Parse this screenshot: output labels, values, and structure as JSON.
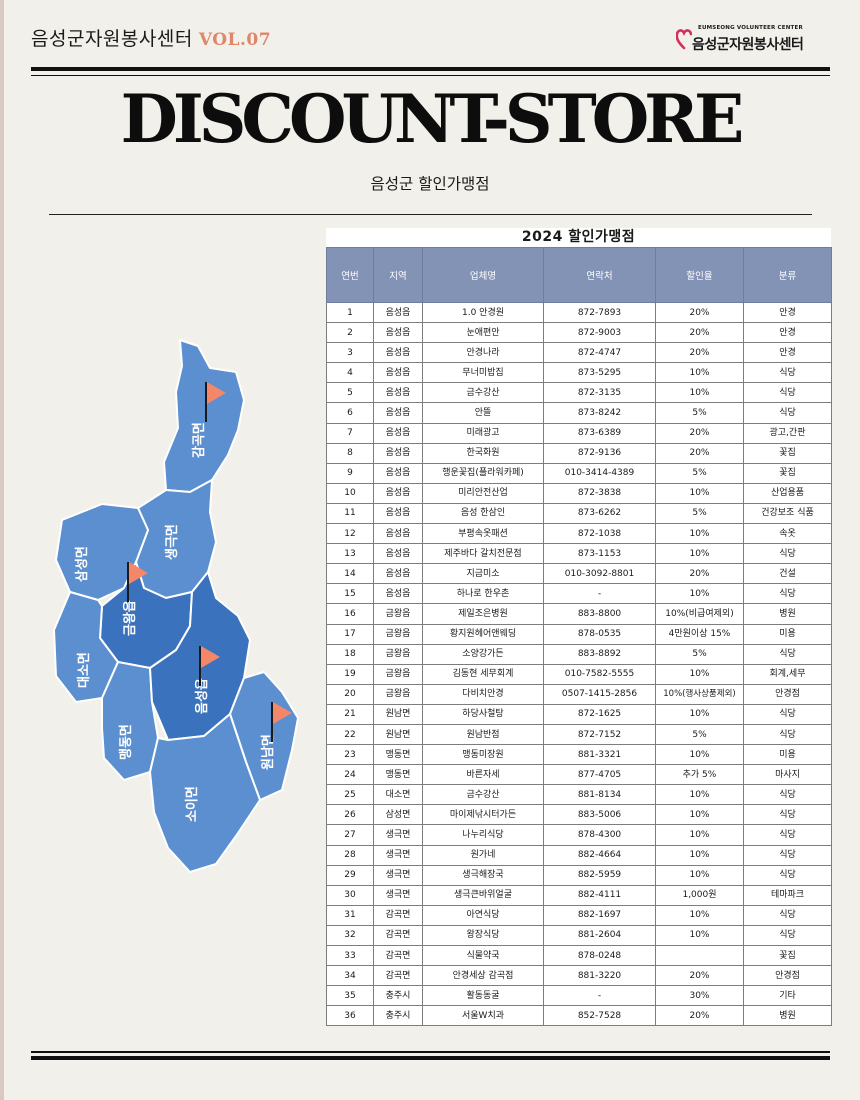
{
  "header": {
    "org_name": "음성군자원봉사센터",
    "vol": "VOL.07",
    "logo_sub": "EUMSEONG VOLUNTEER CENTER",
    "logo_name": "음성군자원봉사센터"
  },
  "title": "DISCOUNT-STORE",
  "subtitle": "음성군 할인가맹점",
  "colors": {
    "map_fill": "#5b8fd0",
    "map_dark": "#3a72bd",
    "flag": "#f4866a",
    "header_bg": "#8393b6",
    "vol": "#e0866a"
  },
  "map": {
    "regions": [
      "감곡면",
      "생극면",
      "삼성면",
      "금왕읍",
      "대소면",
      "맹동면",
      "음성읍",
      "원남면",
      "소이면"
    ]
  },
  "table": {
    "title": "2024 할인가맹점",
    "columns": [
      "연번",
      "지역",
      "업체명",
      "연락처",
      "할인율",
      "분류"
    ],
    "rows": [
      [
        "1",
        "음성읍",
        "1.0 안경원",
        "872-7893",
        "20%",
        "안경"
      ],
      [
        "2",
        "음성읍",
        "눈애편안",
        "872-9003",
        "20%",
        "안경"
      ],
      [
        "3",
        "음성읍",
        "안경나라",
        "872-4747",
        "20%",
        "안경"
      ],
      [
        "4",
        "음성읍",
        "무너미밥집",
        "873-5295",
        "10%",
        "식당"
      ],
      [
        "5",
        "음성읍",
        "금수강산",
        "872-3135",
        "10%",
        "식당"
      ],
      [
        "6",
        "음성읍",
        "안뜰",
        "873-8242",
        "5%",
        "식당"
      ],
      [
        "7",
        "음성읍",
        "미래광고",
        "873-6389",
        "20%",
        "광고,간판"
      ],
      [
        "8",
        "음성읍",
        "한국화원",
        "872-9136",
        "20%",
        "꽃집"
      ],
      [
        "9",
        "음성읍",
        "행운꽃집(플라워카페)",
        "010-3414-4389",
        "5%",
        "꽃집"
      ],
      [
        "10",
        "음성읍",
        "미리안전산업",
        "872-3838",
        "10%",
        "산업용품"
      ],
      [
        "11",
        "음성읍",
        "음성 한삼인",
        "873-6262",
        "5%",
        "건강보조 식품"
      ],
      [
        "12",
        "음성읍",
        "부평속옷패션",
        "872-1038",
        "10%",
        "속옷"
      ],
      [
        "13",
        "음성읍",
        "제주바다 갈치전문점",
        "873-1153",
        "10%",
        "식당"
      ],
      [
        "14",
        "음성읍",
        "지금미소",
        "010-3092-8801",
        "20%",
        "건설"
      ],
      [
        "15",
        "음성읍",
        "하나로 한우촌",
        "-",
        "10%",
        "식당"
      ],
      [
        "16",
        "금왕읍",
        "제일조은병원",
        "883-8800",
        "10%(비급여제외)",
        "병원"
      ],
      [
        "17",
        "금왕읍",
        "황지원헤어앤웨딩",
        "878-0535",
        "4만원이상 15%",
        "미용"
      ],
      [
        "18",
        "금왕읍",
        "소양강가든",
        "883-8892",
        "5%",
        "식당"
      ],
      [
        "19",
        "금왕읍",
        "김동현 세무회계",
        "010-7582-5555",
        "10%",
        "회계,세무"
      ],
      [
        "20",
        "금왕읍",
        "다비치안경",
        "0507-1415-2856",
        "10%(행사상품제외)",
        "안경점"
      ],
      [
        "21",
        "원남면",
        "하당사철탕",
        "872-1625",
        "10%",
        "식당"
      ],
      [
        "22",
        "원남면",
        "원남반점",
        "872-7152",
        "5%",
        "식당"
      ],
      [
        "23",
        "맹동면",
        "맹동미장원",
        "881-3321",
        "10%",
        "미용"
      ],
      [
        "24",
        "맹동면",
        "바른자세",
        "877-4705",
        "추가 5%",
        "마사지"
      ],
      [
        "25",
        "대소면",
        "금수강산",
        "881-8134",
        "10%",
        "식당"
      ],
      [
        "26",
        "삼성면",
        "마이제낚시터가든",
        "883-5006",
        "10%",
        "식당"
      ],
      [
        "27",
        "생극면",
        "나누리식당",
        "878-4300",
        "10%",
        "식당"
      ],
      [
        "28",
        "생극면",
        "원가네",
        "882-4664",
        "10%",
        "식당"
      ],
      [
        "29",
        "생극면",
        "생극해장국",
        "882-5959",
        "10%",
        "식당"
      ],
      [
        "30",
        "생극면",
        "생극큰바위얼굴",
        "882-4111",
        "1,000원",
        "테마파크"
      ],
      [
        "31",
        "감곡면",
        "아연식당",
        "882-1697",
        "10%",
        "식당"
      ],
      [
        "32",
        "감곡면",
        "왕장식당",
        "881-2604",
        "10%",
        "식당"
      ],
      [
        "33",
        "감곡면",
        "식물약국",
        "878-0248",
        "",
        "꽃집"
      ],
      [
        "34",
        "감곡면",
        "안경세상 감곡점",
        "881-3220",
        "20%",
        "안경점"
      ],
      [
        "35",
        "충주시",
        "활동동굴",
        "-",
        "30%",
        "기타"
      ],
      [
        "36",
        "충주시",
        "서울W치과",
        "852-7528",
        "20%",
        "병원"
      ]
    ]
  }
}
